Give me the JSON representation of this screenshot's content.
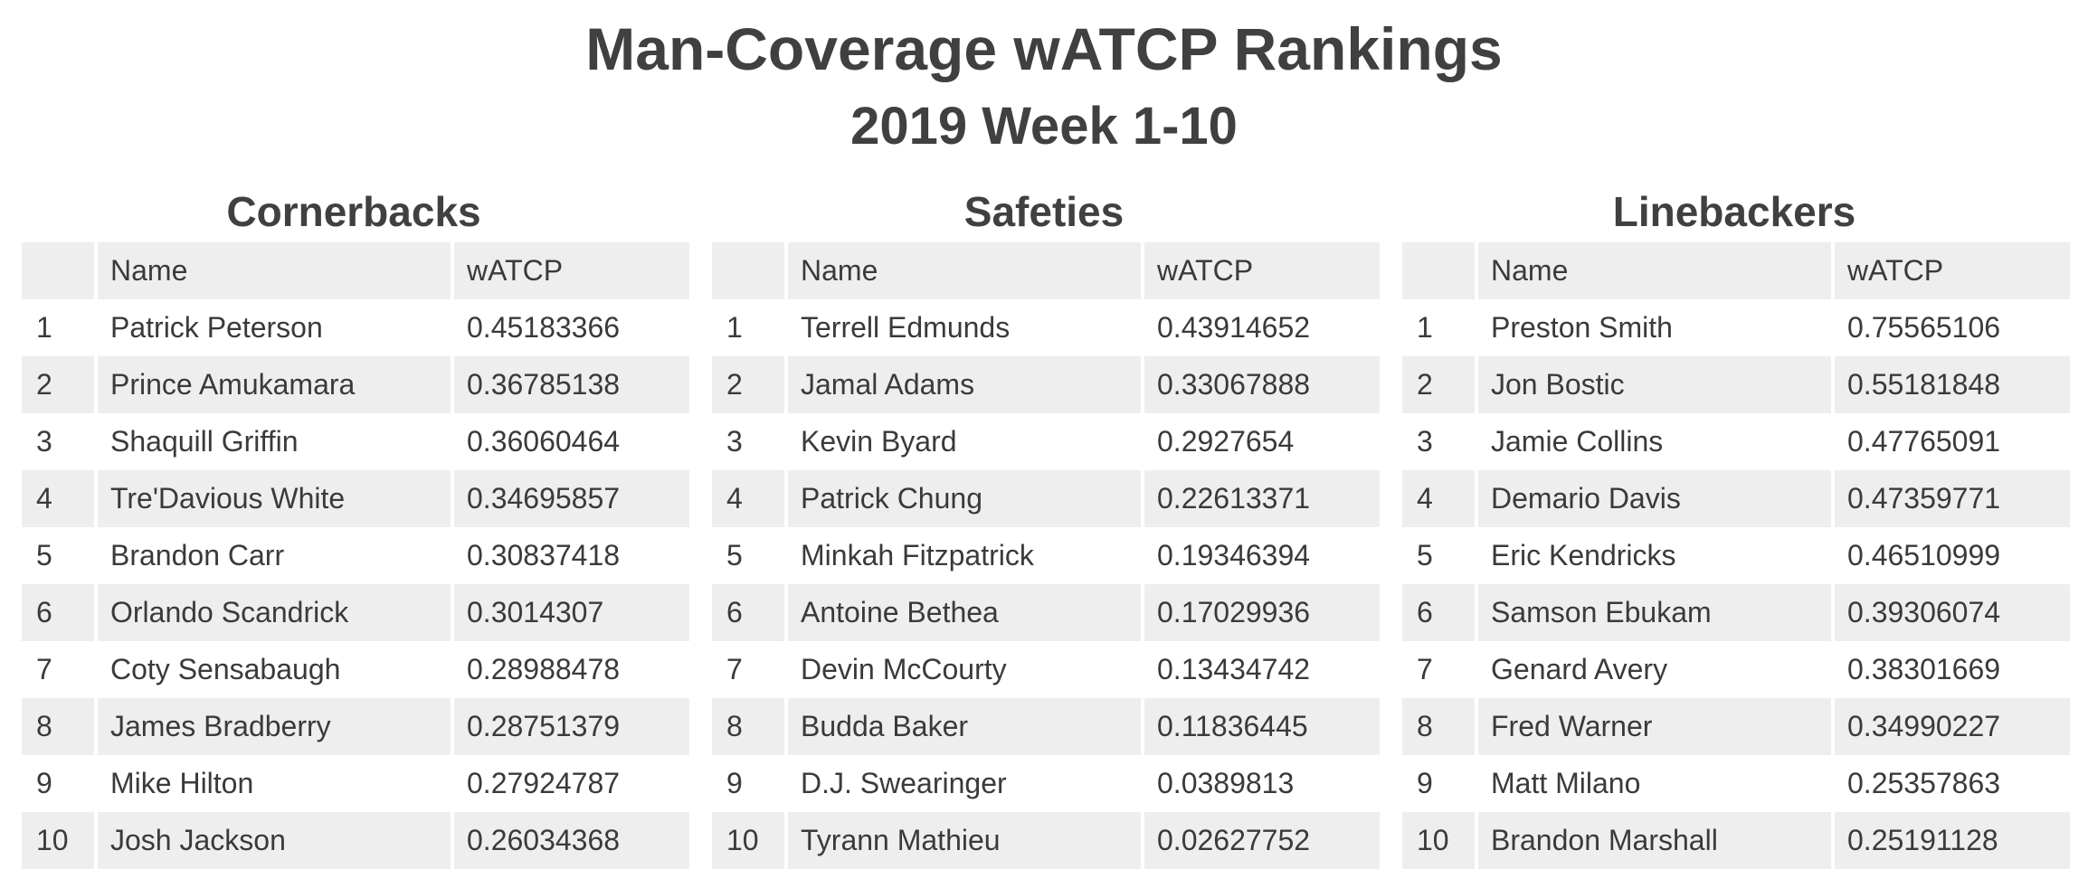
{
  "title": "Man-Coverage wATCP Rankings",
  "subtitle": "2019 Week 1-10",
  "columns": {
    "rank": "",
    "name": "Name",
    "value": "wATCP"
  },
  "panels": [
    {
      "heading": "Cornerbacks",
      "rows": [
        {
          "rank": "1",
          "name": "Patrick Peterson",
          "value": "0.45183366"
        },
        {
          "rank": "2",
          "name": "Prince Amukamara",
          "value": "0.36785138"
        },
        {
          "rank": "3",
          "name": "Shaquill Griffin",
          "value": "0.36060464"
        },
        {
          "rank": "4",
          "name": "Tre'Davious White",
          "value": "0.34695857"
        },
        {
          "rank": "5",
          "name": "Brandon Carr",
          "value": "0.30837418"
        },
        {
          "rank": "6",
          "name": "Orlando Scandrick",
          "value": "0.3014307"
        },
        {
          "rank": "7",
          "name": "Coty Sensabaugh",
          "value": "0.28988478"
        },
        {
          "rank": "8",
          "name": "James Bradberry",
          "value": "0.28751379"
        },
        {
          "rank": "9",
          "name": "Mike Hilton",
          "value": "0.27924787"
        },
        {
          "rank": "10",
          "name": "Josh Jackson",
          "value": "0.26034368"
        }
      ]
    },
    {
      "heading": "Safeties",
      "rows": [
        {
          "rank": "1",
          "name": "Terrell Edmunds",
          "value": "0.43914652"
        },
        {
          "rank": "2",
          "name": "Jamal Adams",
          "value": "0.33067888"
        },
        {
          "rank": "3",
          "name": "Kevin Byard",
          "value": "0.2927654"
        },
        {
          "rank": "4",
          "name": "Patrick Chung",
          "value": "0.22613371"
        },
        {
          "rank": "5",
          "name": "Minkah Fitzpatrick",
          "value": "0.19346394"
        },
        {
          "rank": "6",
          "name": "Antoine Bethea",
          "value": "0.17029936"
        },
        {
          "rank": "7",
          "name": "Devin McCourty",
          "value": "0.13434742"
        },
        {
          "rank": "8",
          "name": "Budda Baker",
          "value": "0.11836445"
        },
        {
          "rank": "9",
          "name": "D.J. Swearinger",
          "value": "0.0389813"
        },
        {
          "rank": "10",
          "name": "Tyrann Mathieu",
          "value": "0.02627752"
        }
      ]
    },
    {
      "heading": "Linebackers",
      "rows": [
        {
          "rank": "1",
          "name": "Preston Smith",
          "value": "0.75565106"
        },
        {
          "rank": "2",
          "name": "Jon Bostic",
          "value": "0.55181848"
        },
        {
          "rank": "3",
          "name": "Jamie Collins",
          "value": "0.47765091"
        },
        {
          "rank": "4",
          "name": "Demario Davis",
          "value": "0.47359771"
        },
        {
          "rank": "5",
          "name": "Eric Kendricks",
          "value": "0.46510999"
        },
        {
          "rank": "6",
          "name": "Samson Ebukam",
          "value": "0.39306074"
        },
        {
          "rank": "7",
          "name": "Genard Avery",
          "value": "0.38301669"
        },
        {
          "rank": "8",
          "name": "Fred Warner",
          "value": "0.34990227"
        },
        {
          "rank": "9",
          "name": "Matt Milano",
          "value": "0.25357863"
        },
        {
          "rank": "10",
          "name": "Brandon Marshall",
          "value": "0.25191128"
        }
      ]
    }
  ]
}
